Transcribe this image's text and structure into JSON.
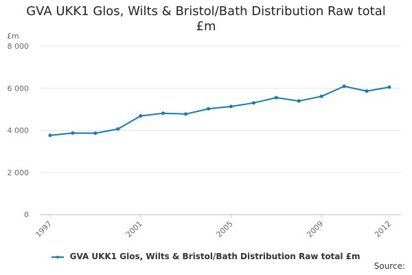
{
  "chart_data": {
    "type": "line",
    "title_lines": [
      "GVA UKK1 Glos, Wilts & Bristol/Bath Distribution Raw total",
      "£m"
    ],
    "unit_label": "£m",
    "x": [
      1997,
      1998,
      1999,
      2000,
      2001,
      2002,
      2003,
      2004,
      2005,
      2006,
      2007,
      2008,
      2009,
      2010,
      2011,
      2012
    ],
    "x_tick_labels": [
      "1997",
      "2001",
      "2005",
      "2009",
      "2012"
    ],
    "x_tick_values": [
      1997,
      2001,
      2005,
      2009,
      2012
    ],
    "y_tick_labels": [
      "0",
      "2 000",
      "4 000",
      "6 000",
      "8 000"
    ],
    "y_tick_values": [
      0,
      2000,
      4000,
      6000,
      8000
    ],
    "ylim": [
      0,
      8000
    ],
    "series": [
      {
        "name": "GVA UKK1 Glos, Wilts & Bristol/Bath Distribution Raw total £m",
        "values": [
          3760,
          3870,
          3860,
          4060,
          4680,
          4810,
          4770,
          5020,
          5130,
          5300,
          5550,
          5390,
          5610,
          6090,
          5860,
          6050
        ]
      }
    ],
    "grid": true,
    "legend_position": "bottom",
    "source_label": "Source:"
  },
  "colors": {
    "series": "#0b7bbd",
    "grid": "#e6e6e6",
    "axis_text": "#666666"
  }
}
